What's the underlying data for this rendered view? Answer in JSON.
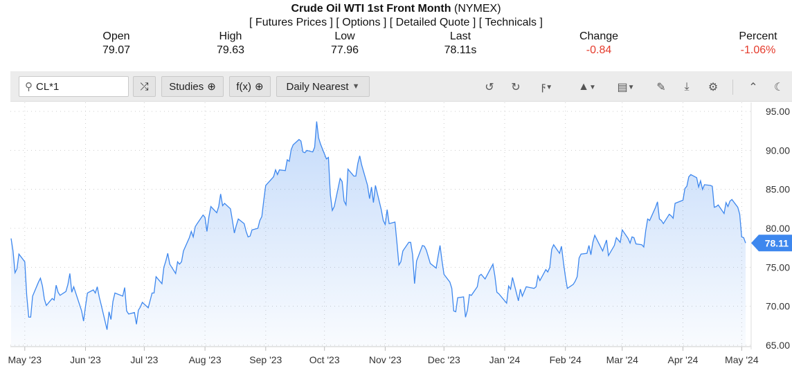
{
  "header": {
    "title": "Crude Oil WTI 1st Front Month",
    "exchange": "(NYMEX)",
    "links": [
      "[ Futures Prices ]",
      "[ Options ]",
      "[ Detailed Quote ]",
      "[ Technicals ]"
    ]
  },
  "stats": [
    {
      "label": "Open",
      "value": "79.07"
    },
    {
      "label": "High",
      "value": "79.63"
    },
    {
      "label": "Low",
      "value": "77.96"
    },
    {
      "label": "Last",
      "value": "78.11s"
    },
    {
      "label": "Change",
      "value": "-0.84"
    },
    {
      "label": "Percent",
      "value": "-1.06%"
    }
  ],
  "toolbar": {
    "search_value": "CL*1",
    "studies": "Studies",
    "fx": "f(x)",
    "interval": "Daily Nearest",
    "icons": [
      "search-icon",
      "shuffle-icon",
      "plus-circle-icon",
      "caret-down-icon",
      "undo-icon",
      "redo-icon",
      "lightning-icon",
      "chart-type-icon",
      "table-icon",
      "pencil-icon",
      "download-icon",
      "gear-icon",
      "double-chevron-up-icon",
      "moon-icon"
    ]
  },
  "colors": {
    "line": "#3d87ee",
    "negative": "#e53b2c",
    "price_tag": "#3d87ee"
  },
  "chart_data": {
    "type": "area",
    "title": "",
    "xlabel": "",
    "ylabel": "",
    "ylim": [
      65,
      95
    ],
    "yticks": [
      "95.00",
      "90.00",
      "85.00",
      "80.00",
      "75.00",
      "70.00",
      "65.00"
    ],
    "xticks": [
      "May '23",
      "Jun '23",
      "Jul '23",
      "Aug '23",
      "Sep '23",
      "Oct '23",
      "Nov '23",
      "Dec '23",
      "Jan '24",
      "Feb '24",
      "Mar '24",
      "Apr '24",
      "May '24"
    ],
    "xtick_dates": [
      "2023-05-01",
      "2023-06-01",
      "2023-07-01",
      "2023-08-01",
      "2023-09-01",
      "2023-10-01",
      "2023-11-01",
      "2023-12-01",
      "2024-01-01",
      "2024-02-01",
      "2024-03-01",
      "2024-04-01",
      "2024-05-01"
    ],
    "grid": true,
    "last_price_label": "78.11",
    "dates": [
      "2023-04-24",
      "2023-04-25",
      "2023-04-26",
      "2023-04-27",
      "2023-04-28",
      "2023-05-01",
      "2023-05-02",
      "2023-05-03",
      "2023-05-04",
      "2023-05-05",
      "2023-05-08",
      "2023-05-09",
      "2023-05-10",
      "2023-05-11",
      "2023-05-12",
      "2023-05-15",
      "2023-05-16",
      "2023-05-17",
      "2023-05-18",
      "2023-05-19",
      "2023-05-22",
      "2023-05-23",
      "2023-05-24",
      "2023-05-25",
      "2023-05-26",
      "2023-05-30",
      "2023-05-31",
      "2023-06-01",
      "2023-06-02",
      "2023-06-05",
      "2023-06-06",
      "2023-06-07",
      "2023-06-08",
      "2023-06-09",
      "2023-06-12",
      "2023-06-13",
      "2023-06-14",
      "2023-06-15",
      "2023-06-16",
      "2023-06-20",
      "2023-06-21",
      "2023-06-22",
      "2023-06-23",
      "2023-06-26",
      "2023-06-27",
      "2023-06-28",
      "2023-06-29",
      "2023-06-30",
      "2023-07-03",
      "2023-07-05",
      "2023-07-06",
      "2023-07-07",
      "2023-07-10",
      "2023-07-11",
      "2023-07-12",
      "2023-07-13",
      "2023-07-14",
      "2023-07-17",
      "2023-07-18",
      "2023-07-19",
      "2023-07-20",
      "2023-07-21",
      "2023-07-24",
      "2023-07-25",
      "2023-07-26",
      "2023-07-27",
      "2023-07-28",
      "2023-07-31",
      "2023-08-01",
      "2023-08-02",
      "2023-08-03",
      "2023-08-04",
      "2023-08-07",
      "2023-08-08",
      "2023-08-09",
      "2023-08-10",
      "2023-08-11",
      "2023-08-14",
      "2023-08-15",
      "2023-08-16",
      "2023-08-17",
      "2023-08-18",
      "2023-08-21",
      "2023-08-22",
      "2023-08-23",
      "2023-08-24",
      "2023-08-25",
      "2023-08-28",
      "2023-08-29",
      "2023-08-30",
      "2023-08-31",
      "2023-09-01",
      "2023-09-05",
      "2023-09-06",
      "2023-09-07",
      "2023-09-08",
      "2023-09-11",
      "2023-09-12",
      "2023-09-13",
      "2023-09-14",
      "2023-09-15",
      "2023-09-18",
      "2023-09-19",
      "2023-09-20",
      "2023-09-21",
      "2023-09-22",
      "2023-09-25",
      "2023-09-26",
      "2023-09-27",
      "2023-09-28",
      "2023-09-29",
      "2023-10-02",
      "2023-10-03",
      "2023-10-04",
      "2023-10-05",
      "2023-10-06",
      "2023-10-09",
      "2023-10-10",
      "2023-10-11",
      "2023-10-12",
      "2023-10-13",
      "2023-10-16",
      "2023-10-17",
      "2023-10-18",
      "2023-10-19",
      "2023-10-20",
      "2023-10-23",
      "2023-10-24",
      "2023-10-25",
      "2023-10-26",
      "2023-10-27",
      "2023-10-30",
      "2023-10-31",
      "2023-11-01",
      "2023-11-02",
      "2023-11-03",
      "2023-11-06",
      "2023-11-07",
      "2023-11-08",
      "2023-11-09",
      "2023-11-10",
      "2023-11-13",
      "2023-11-14",
      "2023-11-15",
      "2023-11-16",
      "2023-11-17",
      "2023-11-20",
      "2023-11-21",
      "2023-11-22",
      "2023-11-24",
      "2023-11-27",
      "2023-11-28",
      "2023-11-29",
      "2023-11-30",
      "2023-12-01",
      "2023-12-04",
      "2023-12-05",
      "2023-12-06",
      "2023-12-07",
      "2023-12-08",
      "2023-12-11",
      "2023-12-12",
      "2023-12-13",
      "2023-12-14",
      "2023-12-15",
      "2023-12-18",
      "2023-12-19",
      "2023-12-20",
      "2023-12-21",
      "2023-12-22",
      "2023-12-26",
      "2023-12-27",
      "2023-12-28",
      "2023-12-29",
      "2024-01-02",
      "2024-01-03",
      "2024-01-04",
      "2024-01-05",
      "2024-01-08",
      "2024-01-09",
      "2024-01-10",
      "2024-01-11",
      "2024-01-12",
      "2024-01-16",
      "2024-01-17",
      "2024-01-18",
      "2024-01-19",
      "2024-01-22",
      "2024-01-23",
      "2024-01-24",
      "2024-01-25",
      "2024-01-26",
      "2024-01-29",
      "2024-01-30",
      "2024-01-31",
      "2024-02-01",
      "2024-02-02",
      "2024-02-05",
      "2024-02-06",
      "2024-02-07",
      "2024-02-08",
      "2024-02-09",
      "2024-02-12",
      "2024-02-13",
      "2024-02-14",
      "2024-02-15",
      "2024-02-16",
      "2024-02-20",
      "2024-02-21",
      "2024-02-22",
      "2024-02-23",
      "2024-02-26",
      "2024-02-27",
      "2024-02-28",
      "2024-02-29",
      "2024-03-01",
      "2024-03-04",
      "2024-03-05",
      "2024-03-06",
      "2024-03-07",
      "2024-03-08",
      "2024-03-11",
      "2024-03-12",
      "2024-03-13",
      "2024-03-14",
      "2024-03-15",
      "2024-03-18",
      "2024-03-19",
      "2024-03-20",
      "2024-03-21",
      "2024-03-22",
      "2024-03-25",
      "2024-03-26",
      "2024-03-27",
      "2024-03-28",
      "2024-04-01",
      "2024-04-02",
      "2024-04-03",
      "2024-04-04",
      "2024-04-05",
      "2024-04-08",
      "2024-04-09",
      "2024-04-10",
      "2024-04-11",
      "2024-04-12",
      "2024-04-15",
      "2024-04-16",
      "2024-04-17",
      "2024-04-18",
      "2024-04-19",
      "2024-04-22",
      "2024-04-23",
      "2024-04-24",
      "2024-04-25",
      "2024-04-26",
      "2024-04-29",
      "2024-04-30",
      "2024-05-01",
      "2024-05-02",
      "2024-05-03"
    ],
    "values": [
      78.7,
      77.1,
      74.3,
      74.8,
      76.7,
      75.7,
      71.4,
      68.6,
      68.6,
      71.3,
      73.1,
      73.6,
      72.6,
      70.9,
      70.1,
      71.0,
      70.8,
      72.7,
      71.8,
      71.4,
      71.9,
      72.8,
      74.2,
      71.8,
      72.5,
      69.4,
      68.1,
      70.0,
      71.7,
      72.1,
      71.7,
      72.5,
      71.2,
      70.2,
      67.0,
      69.3,
      68.3,
      70.6,
      71.7,
      71.3,
      72.4,
      69.4,
      69.0,
      69.2,
      67.7,
      69.5,
      69.9,
      70.5,
      69.8,
      71.7,
      71.7,
      73.8,
      72.9,
      75.0,
      75.8,
      76.8,
      75.4,
      74.2,
      75.7,
      75.4,
      75.7,
      77.1,
      78.8,
      79.6,
      78.9,
      80.2,
      80.6,
      81.7,
      81.4,
      79.6,
      81.5,
      82.8,
      82.0,
      82.8,
      84.4,
      82.9,
      83.2,
      82.5,
      81.0,
      79.4,
      80.4,
      81.2,
      80.6,
      79.6,
      78.9,
      79.0,
      79.8,
      80.0,
      81.0,
      81.5,
      83.6,
      85.5,
      86.6,
      87.5,
      86.9,
      87.5,
      87.4,
      88.8,
      88.6,
      90.1,
      90.7,
      91.4,
      91.2,
      89.8,
      89.7,
      90.0,
      89.8,
      90.4,
      93.7,
      91.6,
      90.8,
      88.9,
      89.1,
      84.3,
      82.3,
      82.8,
      86.4,
      86.0,
      83.5,
      83.0,
      87.6,
      86.7,
      86.7,
      88.3,
      89.3,
      88.1,
      85.5,
      83.8,
      85.3,
      83.3,
      85.5,
      82.4,
      81.0,
      80.5,
      82.4,
      80.6,
      80.8,
      78.1,
      75.3,
      75.7,
      77.1,
      78.2,
      78.2,
      76.6,
      72.9,
      75.8,
      77.8,
      77.7,
      77.2,
      75.5,
      74.9,
      76.4,
      77.8,
      75.8,
      74.1,
      73.1,
      72.3,
      69.4,
      69.3,
      71.1,
      71.2,
      68.6,
      69.5,
      71.5,
      71.4,
      72.5,
      73.9,
      74.1,
      73.8,
      73.5,
      75.4,
      73.9,
      71.8,
      71.6,
      70.4,
      72.6,
      72.2,
      73.7,
      70.7,
      72.2,
      71.3,
      71.9,
      72.5,
      72.3,
      72.5,
      73.9,
      73.3,
      74.7,
      74.4,
      75.0,
      77.3,
      77.9,
      76.8,
      77.7,
      75.6,
      73.8,
      72.3,
      72.8,
      73.2,
      73.8,
      76.2,
      76.7,
      76.8,
      77.8,
      76.6,
      78.2,
      79.1,
      77.1,
      77.8,
      78.5,
      76.5,
      77.8,
      78.8,
      78.5,
      78.2,
      79.8,
      78.7,
      78.1,
      78.9,
      78.8,
      78.0,
      77.9,
      77.6,
      79.7,
      81.2,
      81.0,
      82.7,
      83.4,
      81.2,
      81.0,
      80.6,
      81.8,
      81.6,
      81.3,
      83.2,
      83.6,
      85.1,
      85.4,
      86.6,
      86.9,
      86.5,
      85.3,
      86.1,
      85.0,
      85.6,
      85.5,
      85.4,
      82.7,
      82.8,
      83.0,
      81.9,
      83.3,
      82.8,
      83.5,
      83.7,
      82.7,
      81.8,
      78.9,
      78.8,
      78.11
    ]
  }
}
